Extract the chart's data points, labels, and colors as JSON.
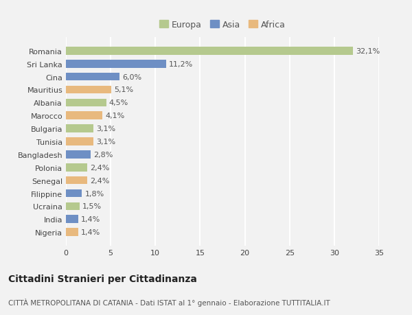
{
  "countries": [
    "Nigeria",
    "India",
    "Ucraina",
    "Filippine",
    "Senegal",
    "Polonia",
    "Bangladesh",
    "Tunisia",
    "Bulgaria",
    "Marocco",
    "Albania",
    "Mauritius",
    "Cina",
    "Sri Lanka",
    "Romania"
  ],
  "values": [
    1.4,
    1.4,
    1.5,
    1.8,
    2.4,
    2.4,
    2.8,
    3.1,
    3.1,
    4.1,
    4.5,
    5.1,
    6.0,
    11.2,
    32.1
  ],
  "labels": [
    "1,4%",
    "1,4%",
    "1,5%",
    "1,8%",
    "2,4%",
    "2,4%",
    "2,8%",
    "3,1%",
    "3,1%",
    "4,1%",
    "4,5%",
    "5,1%",
    "6,0%",
    "11,2%",
    "32,1%"
  ],
  "continents": [
    "Africa",
    "Asia",
    "Europa",
    "Asia",
    "Africa",
    "Europa",
    "Asia",
    "Africa",
    "Europa",
    "Africa",
    "Europa",
    "Africa",
    "Asia",
    "Asia",
    "Europa"
  ],
  "colors": {
    "Europa": "#b5c98e",
    "Asia": "#6e8fc4",
    "Africa": "#e8b97e"
  },
  "xlim": [
    0,
    35
  ],
  "xticks": [
    0,
    5,
    10,
    15,
    20,
    25,
    30,
    35
  ],
  "title": "Cittadini Stranieri per Cittadinanza",
  "subtitle": "CITTÀ METROPOLITANA DI CATANIA - Dati ISTAT al 1° gennaio - Elaborazione TUTTITALIA.IT",
  "background_color": "#f2f2f2",
  "grid_color": "#ffffff",
  "bar_height": 0.62,
  "title_fontsize": 10,
  "subtitle_fontsize": 7.5,
  "label_fontsize": 8,
  "tick_fontsize": 8,
  "legend_fontsize": 9
}
